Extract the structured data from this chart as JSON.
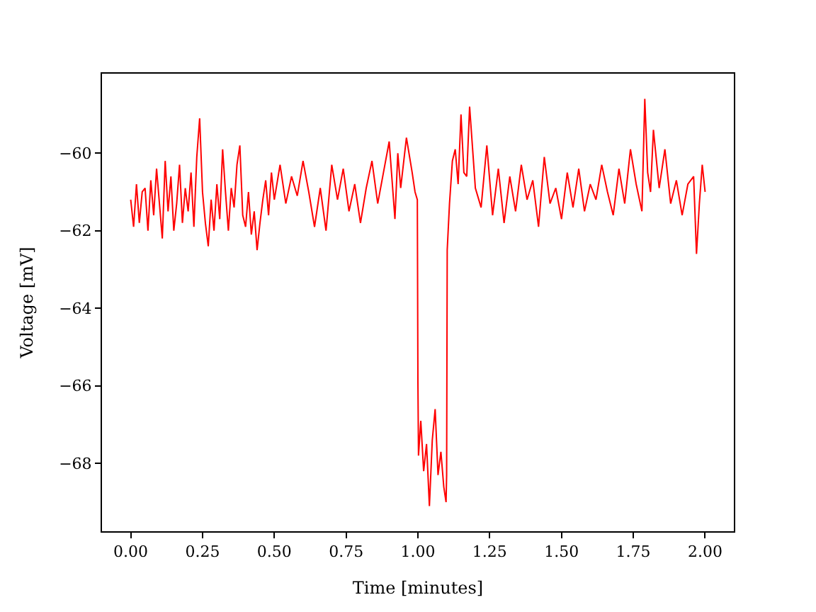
{
  "chart_data": {
    "type": "line",
    "xlabel": "Time [minutes]",
    "ylabel": "Voltage [mV]",
    "xlim": [
      -0.1,
      2.1
    ],
    "xticks": [
      {
        "value": 0,
        "label": "0.00"
      },
      {
        "value": 0.25,
        "label": "0.25"
      },
      {
        "value": 0.5,
        "label": "0.50"
      },
      {
        "value": 0.75,
        "label": "0.75"
      },
      {
        "value": 1,
        "label": "1.00"
      },
      {
        "value": 1.25,
        "label": "1.25"
      },
      {
        "value": 1.5,
        "label": "1.50"
      },
      {
        "value": 1.75,
        "label": "1.75"
      },
      {
        "value": 2,
        "label": "2.00"
      }
    ],
    "ylim": [
      -69.75,
      -57.95
    ],
    "yticks": [
      {
        "value": -68,
        "label": "−68"
      },
      {
        "value": -66,
        "label": "−66"
      },
      {
        "value": -64,
        "label": "−64"
      },
      {
        "value": -62,
        "label": "−62"
      },
      {
        "value": -60,
        "label": "−60"
      }
    ],
    "marker": "none",
    "line_style": "solid",
    "series": [
      {
        "color": "#ff0000",
        "x": [
          0,
          0.01,
          0.02,
          0.03,
          0.04,
          0.05,
          0.06,
          0.07,
          0.08,
          0.09,
          0.1,
          0.11,
          0.12,
          0.13,
          0.14,
          0.15,
          0.16,
          0.17,
          0.18,
          0.19,
          0.2,
          0.21,
          0.22,
          0.23,
          0.24,
          0.25,
          0.26,
          0.27,
          0.28,
          0.29,
          0.3,
          0.31,
          0.32,
          0.33,
          0.34,
          0.35,
          0.36,
          0.37,
          0.38,
          0.39,
          0.4,
          0.41,
          0.42,
          0.43,
          0.44,
          0.45,
          0.46,
          0.47,
          0.48,
          0.49,
          0.5,
          0.52,
          0.54,
          0.56,
          0.58,
          0.6,
          0.62,
          0.64,
          0.66,
          0.68,
          0.7,
          0.72,
          0.74,
          0.76,
          0.78,
          0.8,
          0.82,
          0.84,
          0.86,
          0.88,
          0.9,
          0.92,
          0.93,
          0.94,
          0.96,
          0.98,
          0.99,
          0.998,
          1.0,
          1.002,
          1.01,
          1.02,
          1.03,
          1.04,
          1.05,
          1.06,
          1.07,
          1.08,
          1.09,
          1.098,
          1.1,
          1.102,
          1.11,
          1.12,
          1.13,
          1.14,
          1.15,
          1.16,
          1.17,
          1.18,
          1.2,
          1.22,
          1.24,
          1.26,
          1.28,
          1.3,
          1.32,
          1.34,
          1.36,
          1.38,
          1.4,
          1.42,
          1.44,
          1.46,
          1.48,
          1.5,
          1.52,
          1.54,
          1.56,
          1.58,
          1.6,
          1.62,
          1.64,
          1.66,
          1.68,
          1.7,
          1.72,
          1.74,
          1.76,
          1.78,
          1.79,
          1.8,
          1.81,
          1.82,
          1.84,
          1.86,
          1.88,
          1.9,
          1.92,
          1.94,
          1.96,
          1.97,
          1.98,
          1.99,
          2.0
        ],
        "values": [
          -61.2,
          -61.9,
          -60.8,
          -61.8,
          -61.0,
          -60.9,
          -62.0,
          -60.7,
          -61.6,
          -60.4,
          -61.3,
          -62.2,
          -60.2,
          -61.5,
          -60.6,
          -62.0,
          -61.3,
          -60.3,
          -61.8,
          -60.9,
          -61.5,
          -60.5,
          -61.9,
          -60.1,
          -59.1,
          -61.0,
          -61.8,
          -62.4,
          -61.2,
          -62.0,
          -60.8,
          -61.7,
          -59.9,
          -61.0,
          -62.0,
          -60.9,
          -61.4,
          -60.3,
          -59.8,
          -61.6,
          -61.9,
          -61.0,
          -62.1,
          -61.5,
          -62.5,
          -61.8,
          -61.2,
          -60.7,
          -61.6,
          -60.5,
          -61.2,
          -60.3,
          -61.3,
          -60.6,
          -61.1,
          -60.2,
          -61.0,
          -61.9,
          -60.9,
          -62.0,
          -60.3,
          -61.2,
          -60.4,
          -61.5,
          -60.8,
          -61.8,
          -60.9,
          -60.2,
          -61.3,
          -60.5,
          -59.7,
          -61.7,
          -60.0,
          -60.9,
          -59.6,
          -60.5,
          -61.0,
          -61.2,
          -65.9,
          -67.8,
          -66.9,
          -68.2,
          -67.5,
          -69.1,
          -67.4,
          -66.6,
          -68.3,
          -67.7,
          -68.6,
          -69.0,
          -68.3,
          -62.5,
          -61.3,
          -60.2,
          -59.9,
          -60.8,
          -59.0,
          -60.5,
          -60.6,
          -58.8,
          -60.9,
          -61.4,
          -59.8,
          -61.6,
          -60.4,
          -61.8,
          -60.6,
          -61.5,
          -60.3,
          -61.2,
          -60.7,
          -61.9,
          -60.1,
          -61.3,
          -60.9,
          -61.7,
          -60.5,
          -61.4,
          -60.4,
          -61.5,
          -60.8,
          -61.2,
          -60.3,
          -61.0,
          -61.6,
          -60.4,
          -61.3,
          -59.9,
          -60.8,
          -61.5,
          -58.6,
          -60.5,
          -61.0,
          -59.4,
          -60.9,
          -59.9,
          -61.3,
          -60.7,
          -61.6,
          -60.8,
          -60.6,
          -62.6,
          -61.3,
          -60.3,
          -61.0
        ]
      }
    ]
  }
}
